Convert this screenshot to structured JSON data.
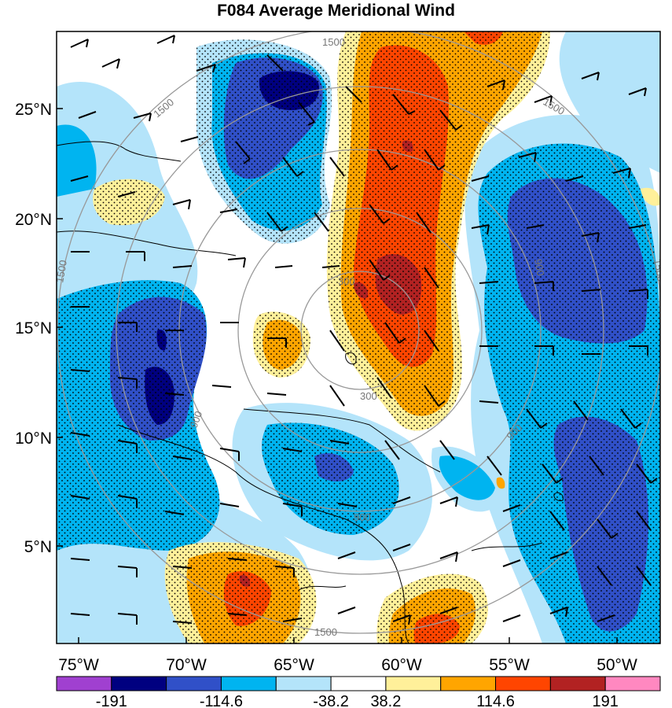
{
  "title": "F084 Average Meridional Wind",
  "lat_labels": [
    "25°N",
    "20°N",
    "15°N",
    "10°N",
    "5°N"
  ],
  "lon_labels": [
    "75°W",
    "70°W",
    "65°W",
    "60°W",
    "55°W",
    "50°W"
  ],
  "range_ring_labels": [
    "300",
    "300",
    "900",
    "900",
    "900",
    "900",
    "1500",
    "1500",
    "1500",
    "1500",
    "1500",
    "1500"
  ],
  "colorbar": {
    "colors": [
      "#a040d0",
      "#000080",
      "#3050c8",
      "#00b4f0",
      "#b4e4fa",
      "#ffffff",
      "#fff09a",
      "#ffa500",
      "#ff4500",
      "#b22222",
      "#ff88c0"
    ],
    "tick_labels": [
      "-191",
      "-114.6",
      "-38.2",
      "38.2",
      "114.6",
      "191"
    ]
  },
  "legend": {
    "stipple": "dots"
  }
}
